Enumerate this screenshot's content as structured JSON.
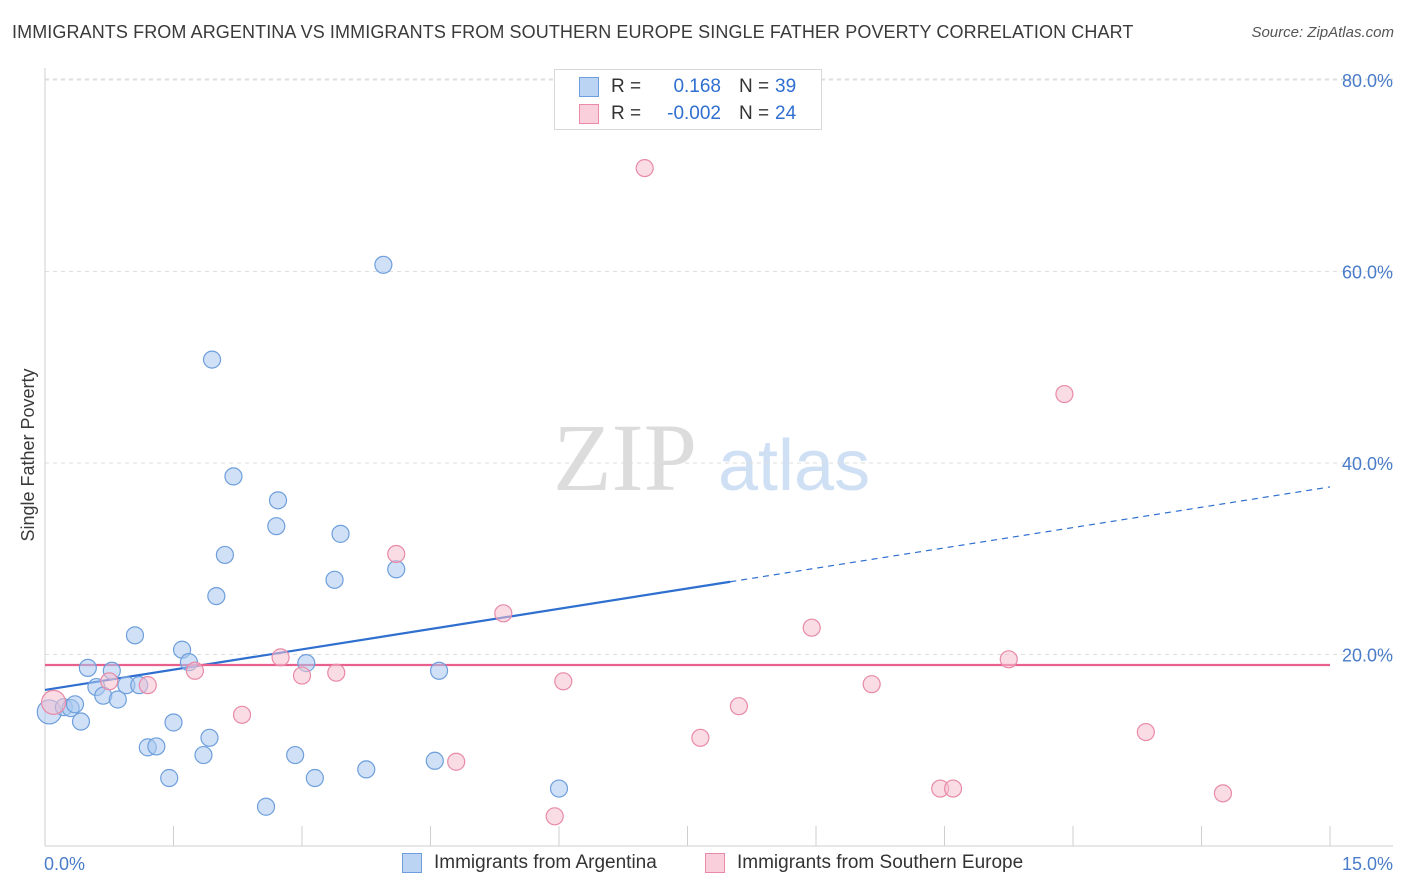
{
  "title": "IMMIGRANTS FROM ARGENTINA VS IMMIGRANTS FROM SOUTHERN EUROPE SINGLE FATHER POVERTY CORRELATION CHART",
  "source": "Source: ZipAtlas.com",
  "watermark": {
    "zip": "ZIP",
    "atlas": "atlas"
  },
  "colors": {
    "blue_fill": "#a9c8f0",
    "blue_stroke": "#6e9fdc",
    "blue_line": "#2f6fd0",
    "pink_fill": "#f6bfd0",
    "pink_stroke": "#e88aa8",
    "pink_line": "#e8608c",
    "tick_text": "#4a7cc9",
    "grid": "#dedede"
  },
  "legend_top": [
    {
      "r_label": "R =",
      "r_value": "0.168",
      "n_label": "N =",
      "n_value": "39",
      "series": "blue"
    },
    {
      "r_label": "R =",
      "r_value": "-0.002",
      "n_label": "N =",
      "n_value": "24",
      "series": "pink"
    }
  ],
  "legend_bottom": [
    {
      "label": "Immigrants from Argentina",
      "series": "blue"
    },
    {
      "label": "Immigrants from Southern Europe",
      "series": "pink"
    }
  ],
  "chart_data": {
    "type": "scatter",
    "title": "IMMIGRANTS FROM ARGENTINA VS IMMIGRANTS FROM SOUTHERN EUROPE SINGLE FATHER POVERTY CORRELATION CHART",
    "xlabel": "",
    "ylabel": "Single Father Poverty",
    "xlim": [
      0,
      15
    ],
    "ylim": [
      0,
      80
    ],
    "x_tick_labels": [
      {
        "value": 0,
        "label": "0.0%"
      },
      {
        "value": 15,
        "label": "15.0%"
      }
    ],
    "y_tick_labels": [
      {
        "value": 20,
        "label": "20.0%"
      },
      {
        "value": 40,
        "label": "40.0%"
      },
      {
        "value": 60,
        "label": "60.0%"
      },
      {
        "value": 80,
        "label": "80.0%"
      }
    ],
    "series": [
      {
        "name": "Immigrants from Argentina",
        "color": "blue",
        "r": 0.168,
        "n": 39,
        "trend": {
          "x0": 0,
          "y0": 16.3,
          "x1": 8.0,
          "y1": 27.6,
          "dash_x1": 15.0,
          "dash_y1": 37.5
        },
        "points": [
          [
            0.05,
            14.0
          ],
          [
            0.22,
            14.5
          ],
          [
            0.3,
            14.4
          ],
          [
            0.35,
            14.8
          ],
          [
            0.42,
            13.0
          ],
          [
            0.5,
            18.6
          ],
          [
            0.6,
            16.6
          ],
          [
            0.68,
            15.7
          ],
          [
            0.78,
            18.3
          ],
          [
            0.85,
            15.3
          ],
          [
            0.95,
            16.8
          ],
          [
            1.05,
            22.0
          ],
          [
            1.1,
            16.8
          ],
          [
            1.2,
            10.3
          ],
          [
            1.3,
            10.4
          ],
          [
            1.45,
            7.1
          ],
          [
            1.5,
            12.9
          ],
          [
            1.6,
            20.5
          ],
          [
            1.68,
            19.2
          ],
          [
            1.85,
            9.5
          ],
          [
            1.92,
            11.3
          ],
          [
            1.95,
            50.8
          ],
          [
            2.0,
            26.1
          ],
          [
            2.1,
            30.4
          ],
          [
            2.2,
            38.6
          ],
          [
            2.58,
            4.1
          ],
          [
            2.7,
            33.4
          ],
          [
            2.72,
            36.1
          ],
          [
            2.92,
            9.5
          ],
          [
            3.05,
            19.1
          ],
          [
            3.15,
            7.1
          ],
          [
            3.38,
            27.8
          ],
          [
            3.45,
            32.6
          ],
          [
            3.75,
            8.0
          ],
          [
            3.95,
            60.7
          ],
          [
            4.1,
            28.9
          ],
          [
            4.55,
            8.9
          ],
          [
            4.6,
            18.3
          ],
          [
            6.0,
            6.0
          ]
        ]
      },
      {
        "name": "Immigrants from Southern Europe",
        "color": "pink",
        "r": -0.002,
        "n": 24,
        "trend": {
          "x0": 0,
          "y0": 18.9,
          "x1": 15.0,
          "y1": 18.9
        },
        "points": [
          [
            0.1,
            15.0
          ],
          [
            0.75,
            17.2
          ],
          [
            1.2,
            16.8
          ],
          [
            1.75,
            18.3
          ],
          [
            2.3,
            13.7
          ],
          [
            2.75,
            19.7
          ],
          [
            3.0,
            17.8
          ],
          [
            3.4,
            18.1
          ],
          [
            4.1,
            30.5
          ],
          [
            4.8,
            8.8
          ],
          [
            5.35,
            24.3
          ],
          [
            5.95,
            3.1
          ],
          [
            6.05,
            17.2
          ],
          [
            7.0,
            70.8
          ],
          [
            7.65,
            11.3
          ],
          [
            8.1,
            14.6
          ],
          [
            8.95,
            22.8
          ],
          [
            9.65,
            16.9
          ],
          [
            10.45,
            6.0
          ],
          [
            10.6,
            6.0
          ],
          [
            11.25,
            19.5
          ],
          [
            11.9,
            47.2
          ],
          [
            12.85,
            11.9
          ],
          [
            13.75,
            5.5
          ]
        ]
      }
    ]
  }
}
